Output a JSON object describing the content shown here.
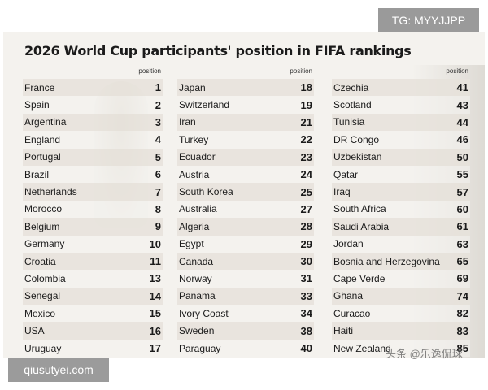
{
  "title": "2026 World Cup participants' position in FIFA rankings",
  "column_header": "position",
  "badges": {
    "top_right": "TG: MYYJJPP",
    "bottom_left": "qiusutyei.com"
  },
  "watermark": "头条 @乐逸侃球",
  "columns": [
    [
      {
        "country": "France",
        "position": "1"
      },
      {
        "country": "Spain",
        "position": "2"
      },
      {
        "country": "Argentina",
        "position": "3"
      },
      {
        "country": "England",
        "position": "4"
      },
      {
        "country": "Portugal",
        "position": "5"
      },
      {
        "country": "Brazil",
        "position": "6"
      },
      {
        "country": "Netherlands",
        "position": "7"
      },
      {
        "country": "Morocco",
        "position": "8"
      },
      {
        "country": "Belgium",
        "position": "9"
      },
      {
        "country": "Germany",
        "position": "10"
      },
      {
        "country": "Croatia",
        "position": "11"
      },
      {
        "country": "Colombia",
        "position": "13"
      },
      {
        "country": "Senegal",
        "position": "14"
      },
      {
        "country": "Mexico",
        "position": "15"
      },
      {
        "country": "USA",
        "position": "16"
      },
      {
        "country": "Uruguay",
        "position": "17"
      }
    ],
    [
      {
        "country": "Japan",
        "position": "18"
      },
      {
        "country": "Switzerland",
        "position": "19"
      },
      {
        "country": "Iran",
        "position": "21"
      },
      {
        "country": "Turkey",
        "position": "22"
      },
      {
        "country": "Ecuador",
        "position": "23"
      },
      {
        "country": "Austria",
        "position": "24"
      },
      {
        "country": "South Korea",
        "position": "25"
      },
      {
        "country": "Australia",
        "position": "27"
      },
      {
        "country": "Algeria",
        "position": "28"
      },
      {
        "country": "Egypt",
        "position": "29"
      },
      {
        "country": "Canada",
        "position": "30"
      },
      {
        "country": "Norway",
        "position": "31"
      },
      {
        "country": "Panama",
        "position": "33"
      },
      {
        "country": "Ivory Coast",
        "position": "34"
      },
      {
        "country": "Sweden",
        "position": "38"
      },
      {
        "country": "Paraguay",
        "position": "40"
      }
    ],
    [
      {
        "country": "Czechia",
        "position": "41"
      },
      {
        "country": "Scotland",
        "position": "43"
      },
      {
        "country": "Tunisia",
        "position": "44"
      },
      {
        "country": "DR Congo",
        "position": "46"
      },
      {
        "country": "Uzbekistan",
        "position": "50"
      },
      {
        "country": "Qatar",
        "position": "55"
      },
      {
        "country": "Iraq",
        "position": "57"
      },
      {
        "country": "South Africa",
        "position": "60"
      },
      {
        "country": "Saudi Arabia",
        "position": "61"
      },
      {
        "country": "Jordan",
        "position": "63"
      },
      {
        "country": "Bosnia and Herzegovina",
        "position": "65"
      },
      {
        "country": "Cape Verde",
        "position": "69"
      },
      {
        "country": "Ghana",
        "position": "74"
      },
      {
        "country": "Curacao",
        "position": "82"
      },
      {
        "country": "Haiti",
        "position": "83"
      },
      {
        "country": "New Zealand",
        "position": "85"
      }
    ]
  ]
}
